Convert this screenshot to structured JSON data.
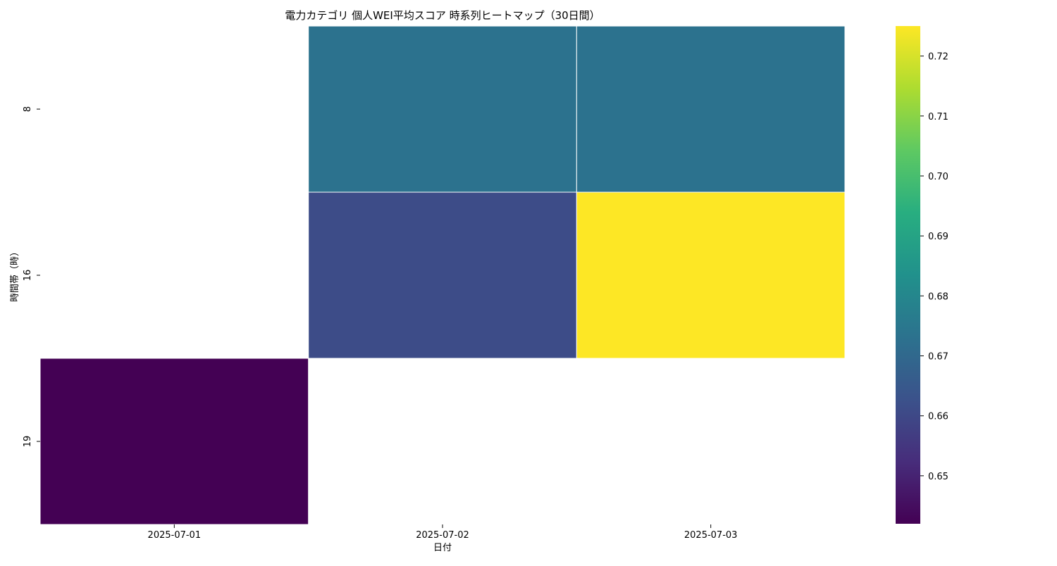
{
  "chart_data": {
    "type": "heatmap",
    "title": "電力カテゴリ 個人WEI平均スコア 時系列ヒートマップ（30日間）",
    "xlabel": "日付",
    "ylabel": "時間帯（時）",
    "x_categories": [
      "2025-07-01",
      "2025-07-02",
      "2025-07-03"
    ],
    "y_categories": [
      "8",
      "16",
      "19"
    ],
    "values": [
      [
        null,
        0.673,
        0.673
      ],
      [
        null,
        0.661,
        0.725
      ],
      [
        0.642,
        null,
        null
      ]
    ],
    "colorscale": "viridis",
    "colorbar": {
      "range": [
        0.642,
        0.725
      ],
      "ticks": [
        0.65,
        0.66,
        0.67,
        0.68,
        0.69,
        0.7,
        0.71,
        0.72
      ],
      "tick_labels": [
        "0.65",
        "0.66",
        "0.67",
        "0.68",
        "0.69",
        "0.70",
        "0.71",
        "0.72"
      ]
    },
    "missing_color": "#ffffff",
    "cell_border_color": "#ffffff"
  }
}
